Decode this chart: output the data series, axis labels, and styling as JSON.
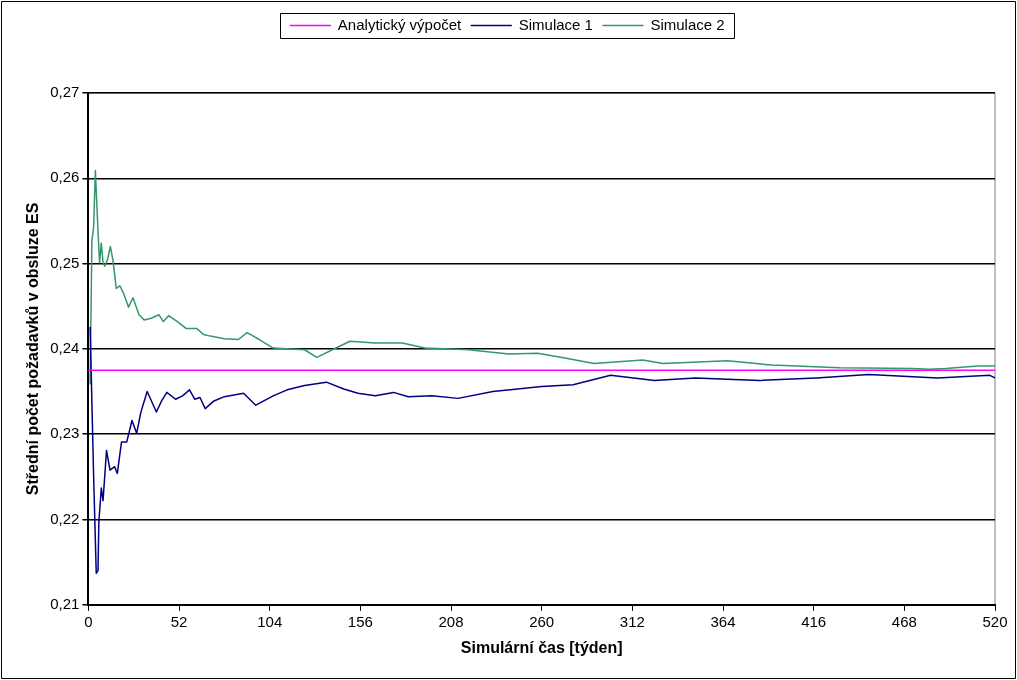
{
  "chart_data": {
    "type": "line",
    "xlabel": "Simulární čas [týden]",
    "ylabel": "Střední počet požadavků v obsluze ES",
    "xlim": [
      0,
      520
    ],
    "xticks": [
      0,
      52,
      104,
      156,
      208,
      260,
      312,
      364,
      416,
      468,
      520
    ],
    "ylim": [
      0.21,
      0.27
    ],
    "yticks": [
      {
        "value": 0.21,
        "label": "0,21"
      },
      {
        "value": 0.22,
        "label": "0,22"
      },
      {
        "value": 0.23,
        "label": "0,23"
      },
      {
        "value": 0.24,
        "label": "0,24"
      },
      {
        "value": 0.25,
        "label": "0,25"
      },
      {
        "value": 0.26,
        "label": "0,26"
      },
      {
        "value": 0.27,
        "label": "0,27"
      }
    ],
    "grid": "y",
    "legend": "top",
    "marker": "none",
    "line_style": "solid",
    "series": [
      {
        "name": "Analytický výpočet",
        "color": "#ff00ff",
        "x": [
          0,
          520
        ],
        "values": [
          0.2375,
          0.2375
        ]
      },
      {
        "name": "Simulace 1",
        "color": "#000080",
        "x": [
          1,
          3,
          4.5,
          5.5,
          6,
          7.4,
          8.4,
          10.4,
          12.4,
          15,
          16.6,
          19,
          22,
          25,
          27.7,
          30,
          33.7,
          39,
          42,
          45,
          50,
          54,
          58,
          61,
          64,
          67,
          72,
          78,
          89,
          96,
          106,
          114,
          124,
          136.5,
          146.5,
          154.6,
          164.6,
          175,
          183.5,
          197,
          212,
          232,
          260,
          278,
          299.5,
          324.7,
          348,
          385,
          417.5,
          447.6,
          487,
          517,
          520
        ],
        "values": [
          0.2425,
          0.2251,
          0.2137,
          0.214,
          0.2197,
          0.2237,
          0.2222,
          0.2281,
          0.2258,
          0.2262,
          0.2254,
          0.2291,
          0.2291,
          0.2316,
          0.2301,
          0.2325,
          0.235,
          0.2326,
          0.2339,
          0.2349,
          0.2341,
          0.2345,
          0.2352,
          0.2341,
          0.2343,
          0.233,
          0.2339,
          0.2344,
          0.2348,
          0.2334,
          0.2345,
          0.2352,
          0.2357,
          0.2361,
          0.2353,
          0.2348,
          0.2345,
          0.2349,
          0.2344,
          0.2345,
          0.2342,
          0.235,
          0.2356,
          0.2358,
          0.2369,
          0.2363,
          0.2366,
          0.2363,
          0.2366,
          0.237,
          0.2366,
          0.2369,
          0.2366
        ]
      },
      {
        "name": "Simulace 2",
        "color": "#339966",
        "x": [
          1,
          2,
          3,
          4,
          5.4,
          6.4,
          7.4,
          8.4,
          9.4,
          11,
          12.6,
          14,
          16,
          18,
          20,
          23,
          25.6,
          29,
          32,
          36,
          40.5,
          43,
          46,
          51,
          56,
          62,
          66,
          70,
          78,
          86,
          91,
          98,
          106,
          116,
          124,
          131,
          142,
          150,
          164.6,
          180,
          193,
          218,
          241,
          257.7,
          274,
          290,
          318,
          329.6,
          366.6,
          392,
          431,
          472.8,
          482,
          491.7,
          510,
          520
        ],
        "values": [
          0.2359,
          0.2526,
          0.2543,
          0.2609,
          0.2543,
          0.2501,
          0.2524,
          0.2501,
          0.2497,
          0.2505,
          0.252,
          0.2505,
          0.2471,
          0.2474,
          0.2466,
          0.2449,
          0.246,
          0.244,
          0.2434,
          0.2436,
          0.244,
          0.2432,
          0.2439,
          0.2432,
          0.2424,
          0.2424,
          0.2417,
          0.2415,
          0.2412,
          0.2411,
          0.2419,
          0.2411,
          0.2401,
          0.24,
          0.2399,
          0.239,
          0.2401,
          0.2409,
          0.2407,
          0.2407,
          0.2401,
          0.2399,
          0.2394,
          0.2395,
          0.2389,
          0.2383,
          0.2387,
          0.2383,
          0.2386,
          0.2381,
          0.2378,
          0.2377,
          0.2376,
          0.2377,
          0.238,
          0.238
        ]
      }
    ]
  }
}
